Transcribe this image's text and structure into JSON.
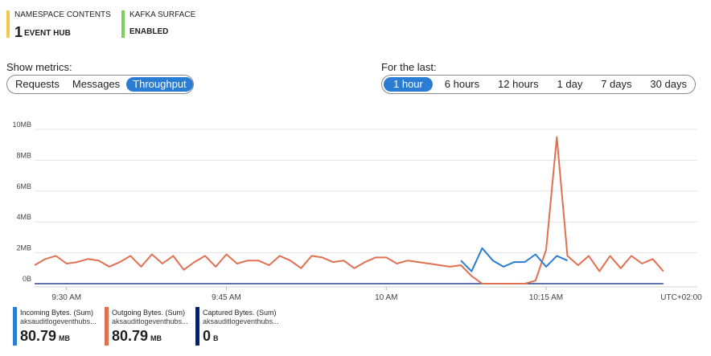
{
  "tiles": [
    {
      "label": "NAMESPACE CONTENTS",
      "big": "1",
      "rest": "EVENT HUB",
      "color": "#f2c94c"
    },
    {
      "label": "KAFKA SURFACE",
      "big": "",
      "rest": "ENABLED",
      "color": "#7ccf5c"
    }
  ],
  "metrics": {
    "label": "Show metrics:",
    "options": [
      "Requests",
      "Messages",
      "Throughput"
    ],
    "selected": "Throughput"
  },
  "range": {
    "label": "For the last:",
    "options": [
      "1 hour",
      "6 hours",
      "12 hours",
      "1 day",
      "7 days",
      "30 days"
    ],
    "selected": "1 hour"
  },
  "chart_data": {
    "type": "line",
    "y_ticks": [
      "10MB",
      "8MB",
      "6MB",
      "4MB",
      "2MB",
      "0B"
    ],
    "ylim": [
      0,
      10
    ],
    "x_ticks": [
      {
        "label": "9:30 AM",
        "t": 3
      },
      {
        "label": "9:45 AM",
        "t": 18
      },
      {
        "label": "10 AM",
        "t": 33
      },
      {
        "label": "10:15 AM",
        "t": 48
      }
    ],
    "timezone_label": "UTC+02:00",
    "t_range": [
      0,
      59
    ],
    "series": [
      {
        "name": "Incoming Bytes. (Sum)",
        "color": "#2b7cd3",
        "t": [
          40,
          41,
          42,
          43,
          44,
          45,
          46,
          47,
          48,
          49,
          50
        ],
        "values": [
          1.5,
          0.8,
          2.3,
          1.5,
          1.1,
          1.4,
          1.4,
          1.9,
          1.1,
          1.8,
          1.5
        ]
      },
      {
        "name": "Outgoing Bytes. (Sum)",
        "color": "#e07050",
        "t": [
          0,
          1,
          2,
          3,
          4,
          5,
          6,
          7,
          8,
          9,
          10,
          11,
          12,
          13,
          14,
          15,
          16,
          17,
          18,
          19,
          20,
          21,
          22,
          23,
          24,
          25,
          26,
          27,
          28,
          29,
          30,
          31,
          32,
          33,
          34,
          35,
          36,
          37,
          38,
          39,
          40,
          41,
          42,
          43,
          44,
          45,
          46,
          47,
          48,
          49,
          50,
          51,
          52,
          53,
          54,
          55,
          56,
          57,
          58,
          59
        ],
        "values": [
          1.2,
          1.6,
          1.8,
          1.3,
          1.4,
          1.6,
          1.5,
          1.1,
          1.4,
          1.8,
          1.1,
          1.9,
          1.3,
          1.8,
          0.9,
          1.4,
          1.8,
          1.1,
          1.9,
          1.3,
          1.5,
          1.5,
          1.2,
          1.8,
          1.5,
          1.0,
          1.8,
          1.7,
          1.4,
          1.5,
          1.0,
          1.4,
          1.7,
          1.7,
          1.3,
          1.5,
          1.4,
          1.3,
          1.2,
          1.1,
          1.2,
          0.5,
          0,
          0,
          0,
          0,
          0,
          0.2,
          2.2,
          9.5,
          1.8,
          1.2,
          1.8,
          0.8,
          1.8,
          1.0,
          1.8,
          1.3,
          1.6,
          0.8
        ]
      },
      {
        "name": "Captured Bytes. (Sum)",
        "color": "#001f7a",
        "t": [
          0,
          59
        ],
        "values": [
          0,
          0
        ]
      }
    ]
  },
  "legend": [
    {
      "name": "Incoming Bytes. (Sum)",
      "resource": "aksauditlogeventhubs...",
      "value": "80.79",
      "unit": "MB",
      "color": "#2b7cd3"
    },
    {
      "name": "Outgoing Bytes. (Sum)",
      "resource": "aksauditlogeventhubs...",
      "value": "80.79",
      "unit": "MB",
      "color": "#e07050"
    },
    {
      "name": "Captured Bytes. (Sum)",
      "resource": "aksauditlogeventhubs...",
      "value": "0",
      "unit": "B",
      "color": "#001f7a"
    }
  ]
}
